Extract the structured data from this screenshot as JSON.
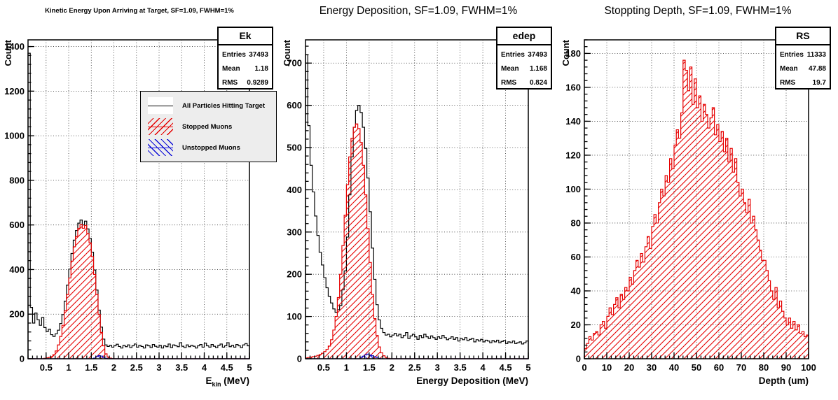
{
  "colors": {
    "black_series": "#000000",
    "red_series": "#e60000",
    "blue_series": "#0f0fd8",
    "legend_background": "#ededed",
    "plot_background": "#ffffff"
  },
  "stats_labels": {
    "entries": "Entries",
    "mean": "Mean",
    "rms": "RMS"
  },
  "legend": {
    "items": [
      {
        "label": "All Particles Hitting Target",
        "color": "#000000",
        "hatch": "none"
      },
      {
        "label": "Stopped Muons",
        "color": "#e60000",
        "hatch": "fwd"
      },
      {
        "label": "Unstopped Muons",
        "color": "#0f0fd8",
        "hatch": "bwd"
      }
    ]
  },
  "chart_data": [
    {
      "type": "histogram",
      "title": "Kinetic Energy Upon Arriving at Target, SF=1.09, FWHM=1%",
      "xlabel": "E_kin (MeV)",
      "xlabel_parts": {
        "main": "E",
        "sub": "kin",
        "unit": " (MeV)"
      },
      "ylabel": "Count",
      "xlim": [
        0.1,
        5.0
      ],
      "ylim": [
        0,
        1430
      ],
      "xticks": [
        0.5,
        1,
        1.5,
        2,
        2.5,
        3,
        3.5,
        4,
        4.5,
        5
      ],
      "yticks": [
        0,
        200,
        400,
        600,
        800,
        1000,
        1200,
        1400
      ],
      "x_minor_step": 0.1,
      "y_minor_step": 40,
      "grid": true,
      "legend_position": "upper-middle-left",
      "bin_start": 0.1,
      "bin_width": 0.05,
      "stats": {
        "name": "Ek",
        "entries": "37493",
        "mean": "1.18",
        "rms": "0.9289"
      },
      "series": [
        {
          "name": "All Particles Hitting Target",
          "color": "#000000",
          "hatch": "none",
          "values": [
            1370,
            230,
            160,
            205,
            175,
            150,
            185,
            140,
            122,
            132,
            108,
            100,
            112,
            128,
            158,
            198,
            258,
            330,
            402,
            472,
            532,
            575,
            608,
            622,
            600,
            617,
            582,
            540,
            478,
            398,
            308,
            218,
            142,
            88,
            62,
            55,
            60,
            52,
            58,
            65,
            55,
            48,
            60,
            54,
            62,
            50,
            58,
            66,
            52,
            60,
            55,
            48,
            62,
            58,
            50,
            64,
            56,
            52,
            60,
            48,
            58,
            54,
            66,
            50,
            62,
            58,
            54,
            72,
            56,
            50,
            62,
            54,
            60,
            56,
            48,
            58,
            64,
            52,
            70,
            58,
            52,
            64,
            56,
            50,
            60,
            66,
            52,
            58,
            72,
            54,
            60,
            52,
            64,
            58,
            50,
            62,
            68,
            58
          ]
        },
        {
          "name": "Stopped Muons",
          "color": "#e60000",
          "hatch": "fwd",
          "values": [
            0,
            0,
            0,
            0,
            0,
            0,
            0,
            2,
            4,
            6,
            10,
            18,
            35,
            62,
            100,
            150,
            215,
            288,
            362,
            438,
            502,
            548,
            585,
            602,
            585,
            598,
            562,
            520,
            458,
            378,
            288,
            198,
            118,
            58,
            22,
            8,
            3,
            1,
            0,
            0,
            0,
            0,
            0,
            0,
            0,
            0,
            0,
            0,
            0,
            0,
            0,
            0,
            0,
            0,
            0,
            0,
            0,
            0,
            0,
            0,
            0,
            0,
            0,
            0,
            0,
            0,
            0,
            0,
            0,
            0,
            0,
            0,
            0,
            0,
            0,
            0,
            0,
            0,
            0,
            0,
            0,
            0,
            0,
            0,
            0,
            0,
            0,
            0,
            0,
            0,
            0,
            0,
            0,
            0,
            0,
            0,
            0,
            0
          ]
        },
        {
          "name": "Unstopped Muons",
          "color": "#0f0fd8",
          "hatch": "bwd",
          "values": [
            0,
            0,
            0,
            0,
            0,
            0,
            0,
            0,
            0,
            0,
            0,
            0,
            0,
            0,
            0,
            0,
            0,
            0,
            0,
            0,
            0,
            0,
            0,
            0,
            0,
            0,
            0,
            0,
            0,
            3,
            10,
            14,
            12,
            6,
            2,
            0,
            0,
            0,
            0,
            0,
            0,
            0,
            0,
            0,
            0,
            0,
            0,
            0,
            0,
            0,
            0,
            0,
            0,
            0,
            0,
            0,
            0,
            0,
            0,
            0,
            0,
            0,
            0,
            0,
            0,
            0,
            0,
            0,
            0,
            0,
            0,
            0,
            0,
            0,
            0,
            0,
            0,
            0,
            0,
            0,
            0,
            0,
            0,
            0,
            0,
            0,
            0,
            0,
            0,
            0,
            0,
            0,
            0,
            0,
            0,
            0,
            0,
            0
          ]
        }
      ]
    },
    {
      "type": "histogram",
      "title": "Energy Deposition, SF=1.09, FWHM=1%",
      "xlabel": "Energy Deposition (MeV)",
      "ylabel": "Count",
      "xlim": [
        0.1,
        5.0
      ],
      "ylim": [
        0,
        755
      ],
      "xticks": [
        0.5,
        1,
        1.5,
        2,
        2.5,
        3,
        3.5,
        4,
        4.5,
        5
      ],
      "yticks": [
        0,
        100,
        200,
        300,
        400,
        500,
        600,
        700
      ],
      "x_minor_step": 0.1,
      "y_minor_step": 20,
      "grid": true,
      "bin_start": 0.1,
      "bin_width": 0.05,
      "stats": {
        "name": "edep",
        "entries": "37493",
        "mean": "1.168",
        "rms": "0.824"
      },
      "series": [
        {
          "name": "All Particles Hitting Target",
          "color": "#000000",
          "hatch": "none",
          "values": [
            720,
            552,
            458,
            395,
            338,
            292,
            252,
            222,
            192,
            168,
            148,
            132,
            118,
            110,
            116,
            126,
            163,
            208,
            288,
            388,
            478,
            548,
            588,
            600,
            583,
            548,
            498,
            428,
            348,
            262,
            188,
            128,
            92,
            72,
            62,
            56,
            58,
            52,
            56,
            60,
            54,
            58,
            50,
            55,
            62,
            48,
            54,
            58,
            52,
            46,
            55,
            50,
            58,
            52,
            48,
            54,
            50,
            46,
            52,
            48,
            55,
            50,
            45,
            48,
            52,
            46,
            50,
            42,
            48,
            45,
            50,
            43,
            46,
            48,
            40,
            45,
            42,
            46,
            40,
            44,
            42,
            38,
            43,
            40,
            44,
            38,
            41,
            43,
            36,
            40,
            38,
            42,
            36,
            38,
            40,
            35,
            38,
            42
          ]
        },
        {
          "name": "Stopped Muons",
          "color": "#e60000",
          "hatch": "fwd",
          "values": [
            2,
            3,
            4,
            5,
            6,
            8,
            10,
            13,
            17,
            22,
            30,
            45,
            68,
            100,
            145,
            200,
            268,
            340,
            412,
            478,
            522,
            548,
            556,
            545,
            512,
            458,
            388,
            308,
            228,
            152,
            95,
            55,
            28,
            14,
            7,
            3,
            1,
            0,
            0,
            0,
            0,
            0,
            0,
            0,
            0,
            0,
            0,
            0,
            0,
            0,
            0,
            0,
            0,
            0,
            0,
            0,
            0,
            0,
            0,
            0,
            0,
            0,
            0,
            0,
            0,
            0,
            0,
            0,
            0,
            0,
            0,
            0,
            0,
            0,
            0,
            0,
            0,
            0,
            0,
            0,
            0,
            0,
            0,
            0,
            0,
            0,
            0,
            0,
            0,
            0,
            0,
            0,
            0,
            0,
            0,
            0,
            0,
            0
          ]
        },
        {
          "name": "Unstopped Muons",
          "color": "#0f0fd8",
          "hatch": "bwd",
          "values": [
            0,
            0,
            0,
            0,
            0,
            0,
            0,
            0,
            0,
            0,
            0,
            0,
            0,
            0,
            0,
            0,
            0,
            0,
            0,
            0,
            0,
            0,
            0,
            0,
            3,
            6,
            9,
            11,
            9,
            7,
            5,
            3,
            1,
            0,
            0,
            0,
            0,
            0,
            0,
            0,
            0,
            0,
            0,
            0,
            0,
            0,
            0,
            0,
            0,
            0,
            0,
            0,
            0,
            0,
            0,
            0,
            0,
            0,
            0,
            0,
            0,
            0,
            0,
            0,
            0,
            0,
            0,
            0,
            0,
            0,
            0,
            0,
            0,
            0,
            0,
            0,
            0,
            0,
            0,
            0,
            0,
            0,
            0,
            0,
            0,
            0,
            0,
            0,
            0,
            0,
            0,
            0,
            0,
            0,
            0,
            0,
            0,
            0
          ]
        }
      ]
    },
    {
      "type": "histogram",
      "title": "Stoppting Depth, SF=1.09, FWHM=1%",
      "xlabel": "Depth (um)",
      "ylabel": "Count",
      "xlim": [
        0,
        100
      ],
      "ylim": [
        0,
        188
      ],
      "xticks": [
        0,
        10,
        20,
        30,
        40,
        50,
        60,
        70,
        80,
        90,
        100
      ],
      "yticks": [
        0,
        20,
        40,
        60,
        80,
        100,
        120,
        140,
        160,
        180
      ],
      "x_minor_step": 2,
      "y_minor_step": 4,
      "grid": true,
      "bin_start": 0,
      "bin_width": 1,
      "stats": {
        "name": "RS",
        "entries": "11333",
        "mean": "47.88",
        "rms": "19.7"
      },
      "series": [
        {
          "name": "Stopped Muons",
          "color": "#e60000",
          "hatch": "fwd",
          "values": [
            6,
            9,
            13,
            11,
            15,
            16,
            14,
            20,
            22,
            18,
            25,
            30,
            26,
            32,
            36,
            30,
            38,
            35,
            42,
            40,
            48,
            44,
            52,
            58,
            54,
            62,
            57,
            66,
            72,
            65,
            78,
            85,
            80,
            92,
            100,
            96,
            108,
            104,
            118,
            112,
            126,
            135,
            130,
            145,
            176,
            170,
            158,
            172,
            150,
            165,
            148,
            155,
            140,
            150,
            144,
            136,
            142,
            148,
            132,
            138,
            128,
            134,
            122,
            130,
            116,
            124,
            110,
            118,
            104,
            96,
            100,
            92,
            86,
            94,
            80,
            84,
            76,
            70,
            64,
            58,
            58,
            52,
            46,
            40,
            35,
            42,
            30,
            34,
            28,
            24,
            20,
            24,
            18,
            22,
            17,
            20,
            15,
            16,
            13,
            14
          ]
        }
      ]
    }
  ]
}
